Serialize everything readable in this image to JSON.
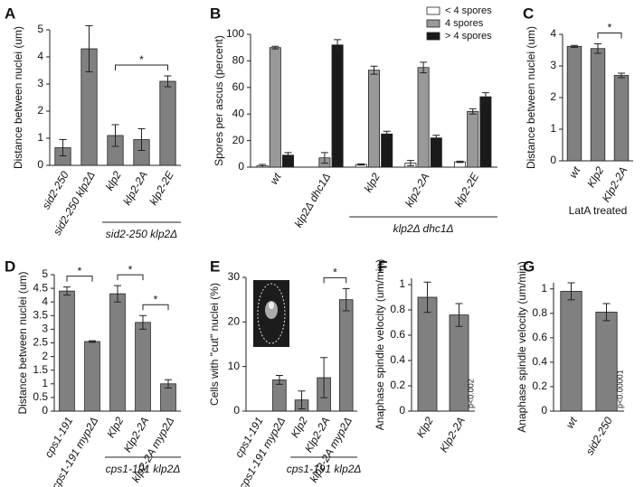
{
  "chart_data": [
    {
      "type": "bar",
      "panel_label": "A",
      "ylabel": "Distance between nuclei (um)",
      "categories": [
        "sid2-250",
        "sid2-250 klp2Δ",
        "klp2",
        "klp2-2A",
        "klp2-2E"
      ],
      "values": [
        0.65,
        4.3,
        1.1,
        0.95,
        3.1
      ],
      "errors": [
        0.3,
        0.85,
        0.4,
        0.4,
        0.2
      ],
      "color": "#808080",
      "ylim": [
        0,
        5
      ],
      "yticks": [
        0,
        1,
        2,
        3,
        4,
        5
      ],
      "brackets": [
        {
          "text": "*",
          "between": [
            "klp2",
            "klp2-2E"
          ]
        }
      ],
      "group_label": {
        "text": "sid2-250 klp2Δ",
        "between": [
          "klp2",
          "klp2-2E"
        ]
      }
    },
    {
      "type": "grouped-bar",
      "panel_label": "B",
      "ylabel": "Spores per ascus (percent)",
      "categories": [
        "wt",
        "klp2Δ dhc1Δ",
        "klp2",
        "klp2-2A",
        "klp2-2E"
      ],
      "series": [
        {
          "name": "< 4 spores",
          "color": "#ffffff",
          "values": [
            1,
            0,
            2,
            3,
            4
          ],
          "errors": [
            1,
            0,
            0.5,
            2,
            0.5
          ]
        },
        {
          "name": "4 spores",
          "color": "#999999",
          "values": [
            90,
            7,
            73,
            75,
            42
          ],
          "errors": [
            1,
            4,
            3,
            4,
            2
          ]
        },
        {
          "name": "> 4 spores",
          "color": "#1a1a1a",
          "values": [
            9,
            92,
            25,
            22,
            53
          ],
          "errors": [
            2,
            4,
            2,
            2,
            3
          ]
        }
      ],
      "ylim": [
        0,
        100
      ],
      "yticks": [
        0,
        20,
        40,
        60,
        80,
        100
      ],
      "legend": "upper-right",
      "group_label": {
        "text": "klp2Δ dhc1Δ",
        "between": [
          "klp2",
          "klp2-2E"
        ]
      }
    },
    {
      "type": "bar",
      "panel_label": "C",
      "ylabel": "Distance between nuclei (um)",
      "xlabel": "LatA treated",
      "categories": [
        "wt",
        "Klp2",
        "Klp2-2A"
      ],
      "values": [
        3.62,
        3.55,
        2.7
      ],
      "errors": [
        0.03,
        0.15,
        0.07
      ],
      "color": "#808080",
      "ylim": [
        0,
        4
      ],
      "yticks": [
        0,
        1,
        2,
        3,
        4
      ],
      "brackets": [
        {
          "text": "*",
          "between": [
            "Klp2",
            "Klp2-2A"
          ]
        }
      ]
    },
    {
      "type": "bar",
      "panel_label": "D",
      "ylabel": "Distance between nuclei (um)",
      "categories": [
        "cps1-191",
        "cps1-191 myp2Δ",
        "Klp2",
        "Klp2-2A",
        "klp2-2A myp2Δ"
      ],
      "values": [
        4.4,
        2.55,
        4.3,
        3.25,
        1.0
      ],
      "errors": [
        0.15,
        0.03,
        0.3,
        0.25,
        0.15
      ],
      "color": "#808080",
      "ylim": [
        0,
        5
      ],
      "yticks": [
        0,
        0.5,
        1,
        1.5,
        2,
        2.5,
        3,
        3.5,
        4,
        4.5,
        5
      ],
      "brackets": [
        {
          "text": "*",
          "between": [
            "cps1-191",
            "cps1-191 myp2Δ"
          ]
        },
        {
          "text": "*",
          "between": [
            "Klp2",
            "Klp2-2A"
          ]
        },
        {
          "text": "*",
          "between": [
            "Klp2-2A",
            "klp2-2A myp2Δ"
          ]
        }
      ],
      "group_label": {
        "text": "cps1-191 klp2Δ",
        "between": [
          "Klp2",
          "klp2-2A myp2Δ"
        ]
      }
    },
    {
      "type": "bar",
      "panel_label": "E",
      "ylabel": "Cells with \"cut\" nuclei (%)",
      "categories": [
        "cps1-191",
        "cps1-191 myp2Δ",
        "Klp2",
        "Klp2-2A",
        "klp2-2A myp2Δ"
      ],
      "values": [
        0,
        7,
        2.5,
        7.5,
        25
      ],
      "errors": [
        0,
        1,
        2,
        4.5,
        2.5
      ],
      "color": "#808080",
      "ylim": [
        0,
        30
      ],
      "yticks": [
        0,
        10,
        20,
        30
      ],
      "brackets": [
        {
          "text": "*",
          "between": [
            "Klp2-2A",
            "klp2-2A myp2Δ"
          ]
        }
      ],
      "group_label": {
        "text": "cps1-191 klp2Δ",
        "between": [
          "Klp2",
          "klp2-2A myp2Δ"
        ]
      }
    },
    {
      "type": "bar",
      "panel_label": "F",
      "ylabel": "Anaphase spindle velocity (um/min)",
      "categories": [
        "Klp2",
        "Klp2-2A"
      ],
      "values": [
        0.9,
        0.76
      ],
      "errors": [
        0.12,
        0.09
      ],
      "color": "#808080",
      "ylim": [
        0,
        1.05
      ],
      "yticks": [
        0,
        0.2,
        0.4,
        0.6,
        0.8,
        1
      ],
      "annotation": "p<0.002"
    },
    {
      "type": "bar",
      "panel_label": "G",
      "ylabel": "Anaphase spindle velocity (um/min)",
      "categories": [
        "wt",
        "sid2-250"
      ],
      "values": [
        0.98,
        0.81
      ],
      "errors": [
        0.07,
        0.07
      ],
      "color": "#808080",
      "ylim": [
        0,
        1.05
      ],
      "yticks": [
        0,
        0.2,
        0.4,
        0.6,
        0.8,
        1
      ],
      "annotation": "p<0.00001"
    }
  ]
}
